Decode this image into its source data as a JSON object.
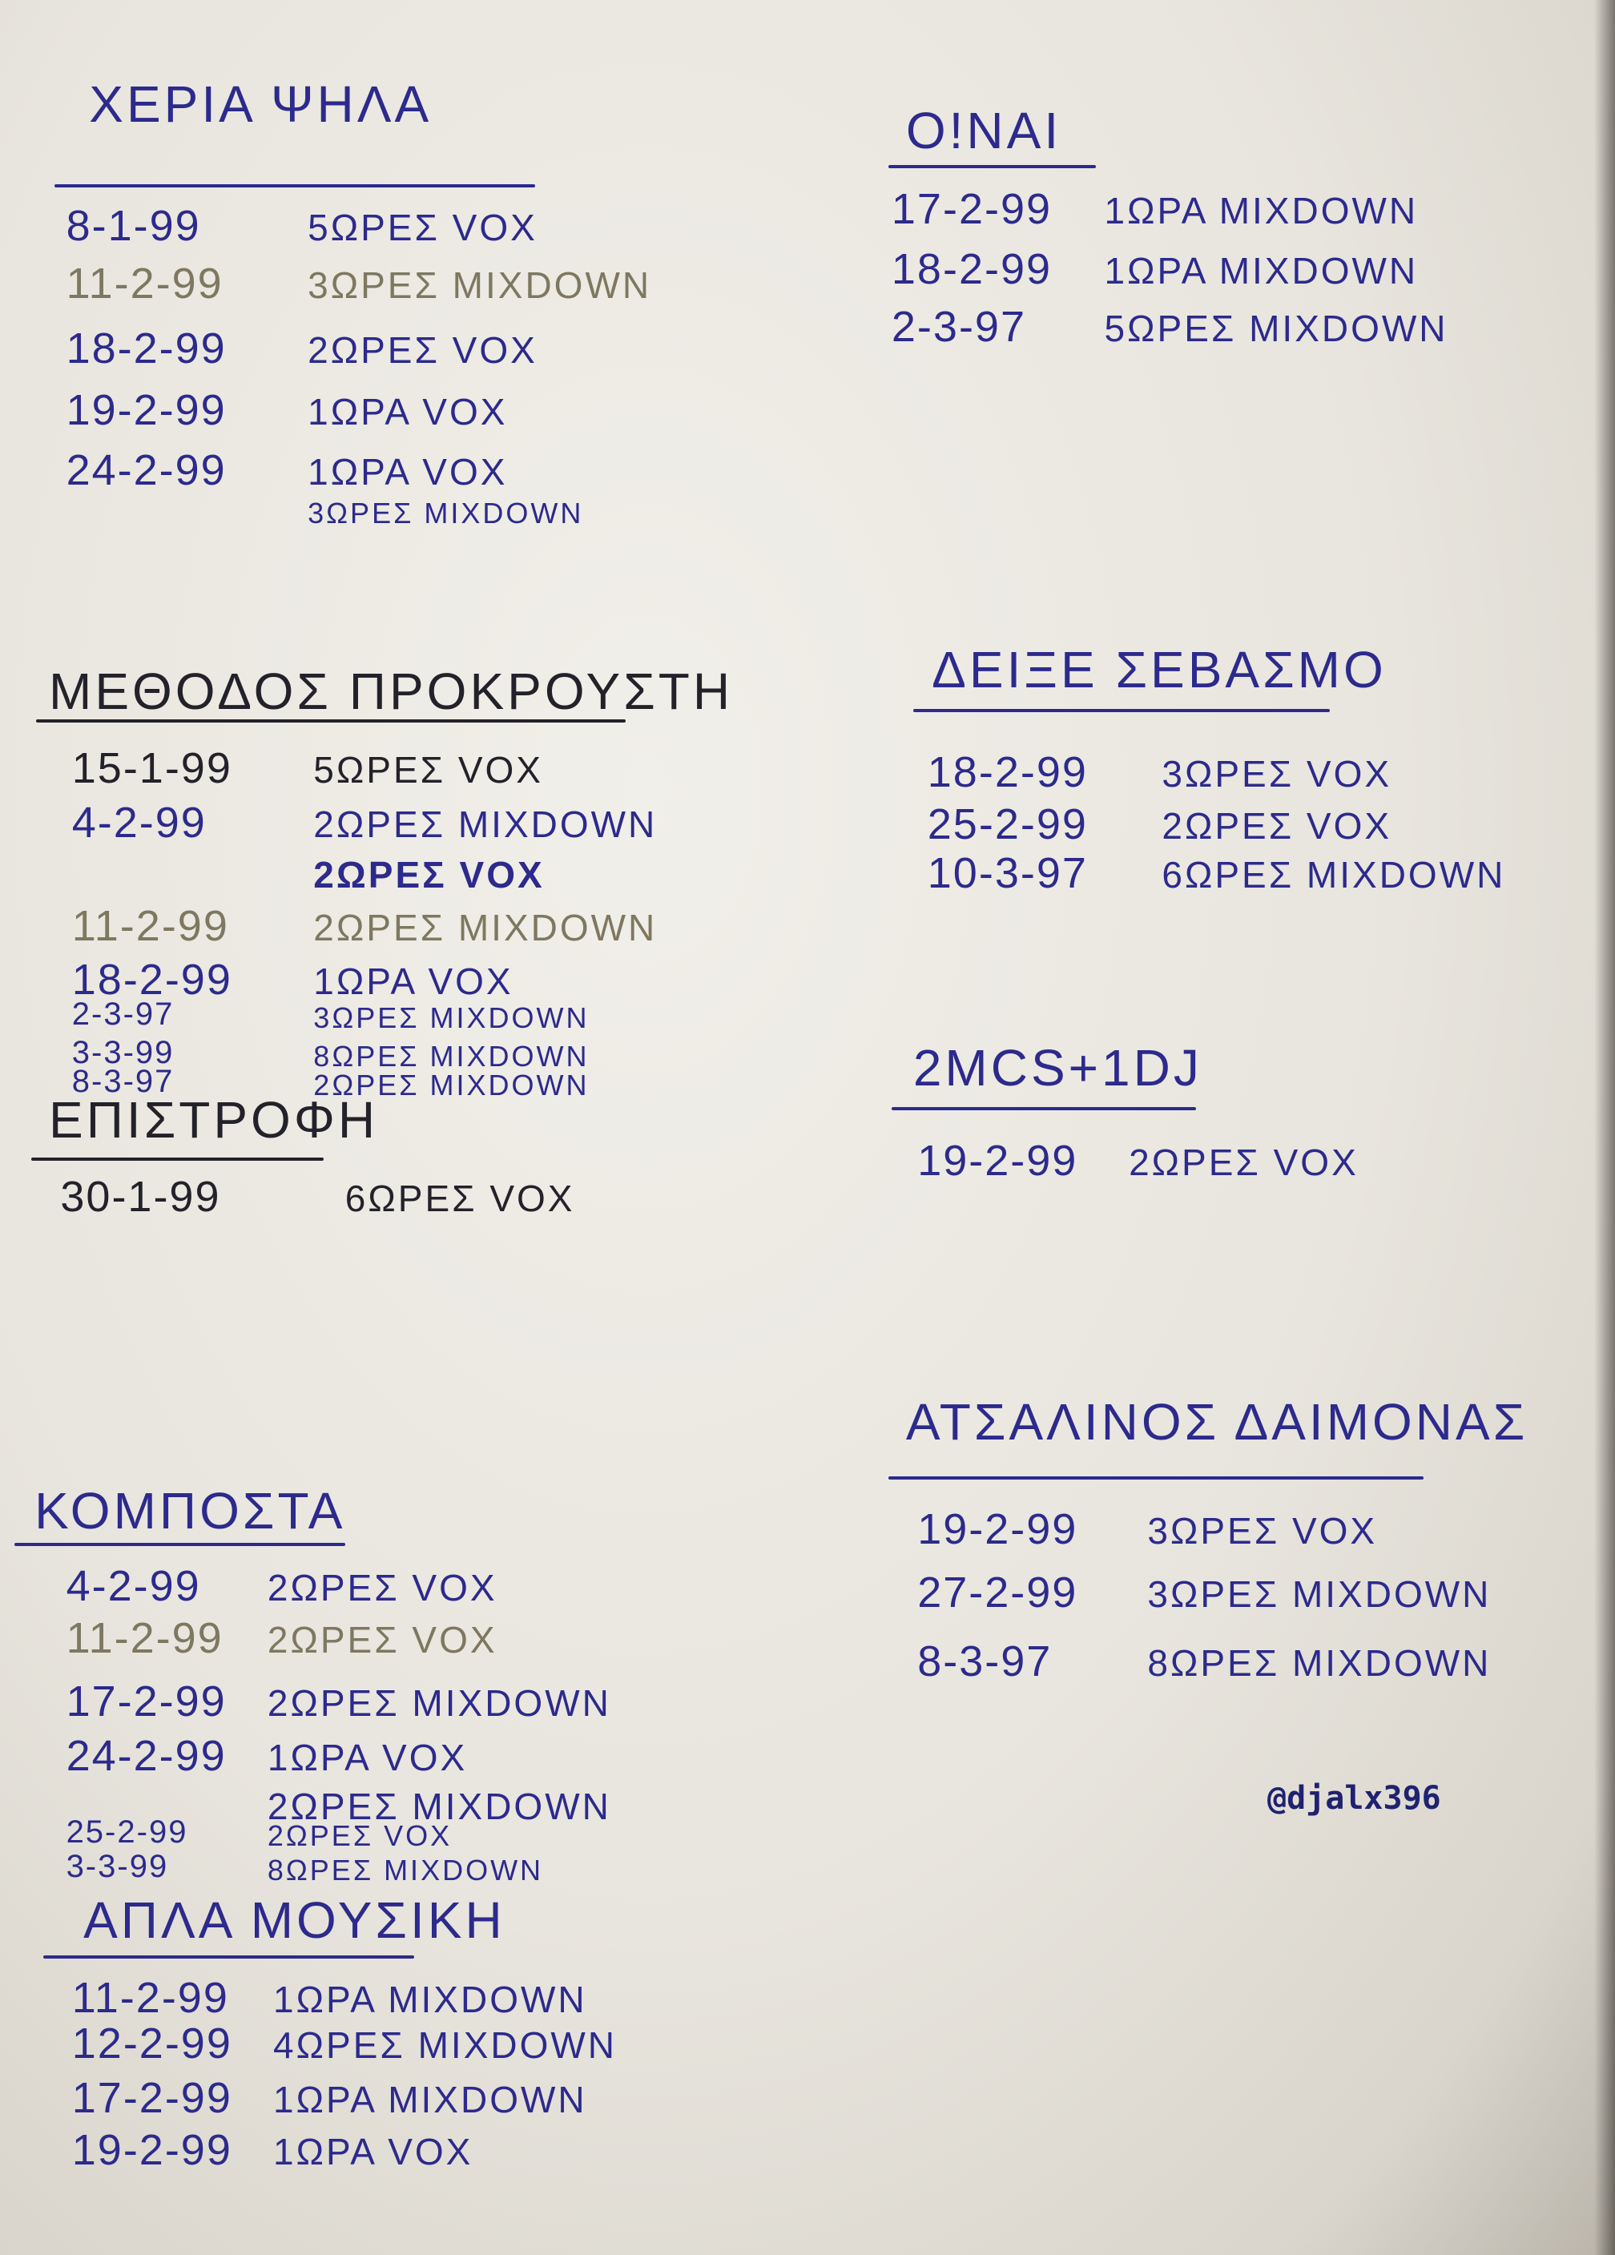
{
  "colors": {
    "blue": "#2c2a8c",
    "black": "#23222a",
    "gray": "#7d785f",
    "paper": "#ebe8e1"
  },
  "sections": [
    {
      "title": "ΧΕΡΙΑ ΨΗΛΑ",
      "ink": "blue",
      "entries": [
        {
          "date": "8-1-99",
          "text": "5ΩΡΕΣ VOX",
          "ink": "blue"
        },
        {
          "date": "11-2-99",
          "text": "3ΩΡΕΣ MIXDOWN",
          "ink": "gray"
        },
        {
          "date": "18-2-99",
          "text": "2ΩΡΕΣ VOX",
          "ink": "blue"
        },
        {
          "date": "19-2-99",
          "text": "1ΩΡΑ VOX",
          "ink": "blue"
        },
        {
          "date": "24-2-99",
          "text": "1ΩΡΑ VOX",
          "ink": "blue"
        },
        {
          "date": "",
          "text": "3ΩΡΕΣ MIXDOWN",
          "ink": "blue"
        }
      ]
    },
    {
      "title": "ΜΕΘΟΔΟΣ ΠΡΟΚΡΟΥΣΤΗ",
      "ink": "black",
      "entries": [
        {
          "date": "15-1-99",
          "text": "5ΩΡΕΣ VOX",
          "ink": "black"
        },
        {
          "date": "4-2-99",
          "text": "2ΩΡΕΣ MIXDOWN",
          "ink": "blue"
        },
        {
          "date": "",
          "text": "2ΩΡΕΣ VOX",
          "ink": "blue"
        },
        {
          "date": "11-2-99",
          "text": "2ΩΡΕΣ MIXDOWN",
          "ink": "gray"
        },
        {
          "date": "18-2-99",
          "text": "1ΩΡΑ VOX",
          "ink": "blue"
        },
        {
          "date": "2-3-97",
          "text": "3ΩΡΕΣ MIXDOWN",
          "ink": "blue"
        },
        {
          "date": "3-3-99",
          "text": "8ΩΡΕΣ MIXDOWN",
          "ink": "blue"
        },
        {
          "date": "8-3-97",
          "text": "2ΩΡΕΣ MIXDOWN",
          "ink": "blue"
        }
      ]
    },
    {
      "title": "ΕΠΙΣΤΡΟΦΗ",
      "ink": "black",
      "entries": [
        {
          "date": "30-1-99",
          "text": "6ΩΡΕΣ VOX",
          "ink": "black"
        }
      ]
    },
    {
      "title": "ΚΟΜΠΟΣΤΑ",
      "ink": "blue",
      "entries": [
        {
          "date": "4-2-99",
          "text": "2ΩΡΕΣ VOX",
          "ink": "blue"
        },
        {
          "date": "11-2-99",
          "text": "2ΩΡΕΣ VOX",
          "ink": "gray"
        },
        {
          "date": "17-2-99",
          "text": "2ΩΡΕΣ MIXDOWN",
          "ink": "blue"
        },
        {
          "date": "24-2-99",
          "text": "1ΩΡΑ VOX",
          "ink": "blue"
        },
        {
          "date": "",
          "text": "2ΩΡΕΣ MIXDOWN",
          "ink": "blue"
        },
        {
          "date": "25-2-99",
          "text": "2ΩΡΕΣ VOX",
          "ink": "blue"
        },
        {
          "date": "3-3-99",
          "text": "8ΩΡΕΣ MIXDOWN",
          "ink": "blue"
        }
      ]
    },
    {
      "title": "ΑΠΛΑ ΜΟΥΣΙΚΗ",
      "ink": "blue",
      "entries": [
        {
          "date": "11-2-99",
          "text": "1ΩΡΑ MIXDOWN",
          "ink": "blue"
        },
        {
          "date": "12-2-99",
          "text": "4ΩΡΕΣ MIXDOWN",
          "ink": "blue"
        },
        {
          "date": "17-2-99",
          "text": "1ΩΡΑ MIXDOWN",
          "ink": "blue"
        },
        {
          "date": "19-2-99",
          "text": "1ΩΡΑ VOX",
          "ink": "blue"
        }
      ]
    },
    {
      "title": "Ο!ΝΑΙ",
      "ink": "blue",
      "entries": [
        {
          "date": "17-2-99",
          "text": "1ΩΡΑ MIXDOWN",
          "ink": "blue"
        },
        {
          "date": "18-2-99",
          "text": "1ΩΡΑ MIXDOWN",
          "ink": "blue"
        },
        {
          "date": "2-3-97",
          "text": "5ΩΡΕΣ MIXDOWN",
          "ink": "blue"
        }
      ]
    },
    {
      "title": "ΔΕΙΞΕ ΣΕΒΑΣΜΟ",
      "ink": "blue",
      "entries": [
        {
          "date": "18-2-99",
          "text": "3ΩΡΕΣ VOX",
          "ink": "blue"
        },
        {
          "date": "25-2-99",
          "text": "2ΩΡΕΣ VOX",
          "ink": "blue"
        },
        {
          "date": "10-3-97",
          "text": "6ΩΡΕΣ MIXDOWN",
          "ink": "blue"
        }
      ]
    },
    {
      "title": "2MCS+1DJ",
      "ink": "blue",
      "entries": [
        {
          "date": "19-2-99",
          "text": "2ΩΡΕΣ VOX",
          "ink": "blue"
        }
      ]
    },
    {
      "title": "ΑΤΣΑΛΙΝΟΣ ΔΑΙΜΟΝΑΣ",
      "ink": "blue",
      "entries": [
        {
          "date": "19-2-99",
          "text": "3ΩΡΕΣ VOX",
          "ink": "blue"
        },
        {
          "date": "27-2-99",
          "text": "3ΩΡΕΣ MIXDOWN",
          "ink": "blue"
        },
        {
          "date": "8-3-97",
          "text": "8ΩΡΕΣ MIXDOWN",
          "ink": "blue"
        }
      ]
    }
  ],
  "watermark": "@djalx396"
}
